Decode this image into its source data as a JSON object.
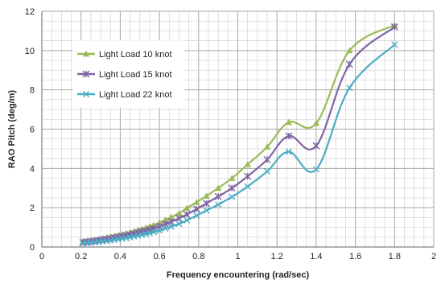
{
  "chart_data": {
    "type": "line",
    "xlabel": "Frequency encountering (rad/sec)",
    "ylabel": "RAO Pitch (deg/m)",
    "xlim": [
      0,
      2
    ],
    "ylim": [
      0,
      12
    ],
    "x_major_ticks": [
      "0",
      "0.2",
      "0.4",
      "0.6",
      "0.8",
      "1",
      "1.2",
      "1.4",
      "1.6",
      "1.8",
      "2"
    ],
    "y_major_ticks": [
      "0",
      "2",
      "4",
      "6",
      "8",
      "10",
      "12"
    ],
    "grid": true,
    "legend_position": "upper-left-inside",
    "series": [
      {
        "name": "Light Load 10 knot",
        "color": "#9bbb59",
        "marker": "triangle",
        "x": [
          0.21,
          0.23,
          0.25,
          0.27,
          0.29,
          0.31,
          0.33,
          0.35,
          0.37,
          0.39,
          0.41,
          0.43,
          0.45,
          0.47,
          0.49,
          0.51,
          0.53,
          0.55,
          0.57,
          0.6,
          0.63,
          0.66,
          0.7,
          0.74,
          0.79,
          0.84,
          0.9,
          0.97,
          1.05,
          1.15,
          1.26,
          1.4,
          1.57,
          1.8
        ],
        "y": [
          0.28,
          0.3,
          0.33,
          0.36,
          0.4,
          0.44,
          0.48,
          0.52,
          0.56,
          0.6,
          0.65,
          0.7,
          0.75,
          0.8,
          0.86,
          0.92,
          0.98,
          1.05,
          1.12,
          1.24,
          1.38,
          1.52,
          1.72,
          1.98,
          2.28,
          2.6,
          3.0,
          3.5,
          4.2,
          5.1,
          6.35,
          6.3,
          10.0,
          11.3
        ]
      },
      {
        "name": "Light Load 15 knot",
        "color": "#8064a2",
        "marker": "star",
        "x": [
          0.21,
          0.23,
          0.25,
          0.27,
          0.29,
          0.31,
          0.33,
          0.35,
          0.37,
          0.39,
          0.41,
          0.43,
          0.45,
          0.47,
          0.49,
          0.51,
          0.53,
          0.55,
          0.57,
          0.6,
          0.63,
          0.66,
          0.7,
          0.74,
          0.79,
          0.84,
          0.9,
          0.97,
          1.05,
          1.15,
          1.26,
          1.4,
          1.57,
          1.8
        ],
        "y": [
          0.24,
          0.26,
          0.28,
          0.31,
          0.34,
          0.37,
          0.4,
          0.44,
          0.47,
          0.51,
          0.55,
          0.59,
          0.63,
          0.68,
          0.73,
          0.78,
          0.83,
          0.89,
          0.95,
          1.05,
          1.16,
          1.28,
          1.46,
          1.66,
          1.93,
          2.22,
          2.57,
          3.0,
          3.6,
          4.45,
          5.65,
          5.15,
          9.3,
          11.2
        ]
      },
      {
        "name": "Light Load 22 knot",
        "color": "#4bacc6",
        "marker": "x",
        "x": [
          0.21,
          0.23,
          0.25,
          0.27,
          0.29,
          0.31,
          0.33,
          0.35,
          0.37,
          0.39,
          0.41,
          0.43,
          0.45,
          0.47,
          0.49,
          0.51,
          0.53,
          0.55,
          0.57,
          0.6,
          0.63,
          0.66,
          0.7,
          0.74,
          0.79,
          0.84,
          0.9,
          0.97,
          1.05,
          1.15,
          1.26,
          1.4,
          1.57,
          1.8
        ],
        "y": [
          0.19,
          0.21,
          0.23,
          0.25,
          0.27,
          0.29,
          0.31,
          0.34,
          0.37,
          0.4,
          0.43,
          0.46,
          0.5,
          0.54,
          0.58,
          0.62,
          0.66,
          0.71,
          0.76,
          0.84,
          0.94,
          1.04,
          1.18,
          1.36,
          1.6,
          1.86,
          2.16,
          2.55,
          3.08,
          3.85,
          4.85,
          3.95,
          8.1,
          10.3
        ]
      }
    ]
  }
}
